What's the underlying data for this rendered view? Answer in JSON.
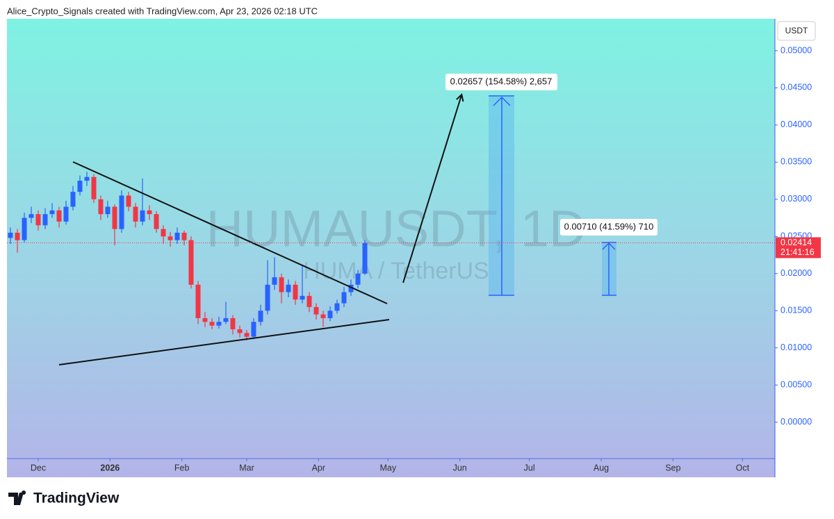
{
  "header": "Alice_Crypto_Signals created with TradingView.com, Apr 23, 2026 02:18 UTC",
  "brand": "TradingView",
  "chart_data": {
    "type": "candlestick",
    "title": "HUMAUSDT, 1D",
    "subtitle": "HUMA / TetherUS",
    "currency": "USDT",
    "up_color": "#2962ff",
    "down_color": "#f23645",
    "grid": false,
    "last_price": 0.02414,
    "countdown": "21:41:16",
    "annotations": [
      "0.02657 (154.58%) 2,657",
      "0.00710 (41.59%) 710"
    ],
    "xlim": [
      -13.5,
      318
    ],
    "xticks": [
      {
        "value": 0,
        "label": "Dec"
      },
      {
        "value": 31,
        "label": "2026"
      },
      {
        "value": 62,
        "label": "Feb"
      },
      {
        "value": 90,
        "label": "Mar"
      },
      {
        "value": 121,
        "label": "Apr"
      },
      {
        "value": 151,
        "label": "May"
      },
      {
        "value": 182,
        "label": "Jun"
      },
      {
        "value": 212,
        "label": "Jul"
      },
      {
        "value": 243,
        "label": "Aug"
      },
      {
        "value": 274,
        "label": "Sep"
      },
      {
        "value": 304,
        "label": "Oct"
      }
    ],
    "ylim": [
      -0.0049,
      0.0543
    ],
    "yticks": [
      {
        "value": 0.05,
        "label": "0.05000"
      },
      {
        "value": 0.045,
        "label": "0.04500"
      },
      {
        "value": 0.04,
        "label": "0.04000"
      },
      {
        "value": 0.035,
        "label": "0.03500"
      },
      {
        "value": 0.03,
        "label": "0.03000"
      },
      {
        "value": 0.025,
        "label": "0.02500"
      },
      {
        "value": 0.02,
        "label": "0.02000"
      },
      {
        "value": 0.015,
        "label": "0.01500"
      },
      {
        "value": 0.01,
        "label": "0.01000"
      },
      {
        "value": 0.005,
        "label": "0.00500"
      },
      {
        "value": 0,
        "label": "0.00000"
      }
    ],
    "x": [
      -12,
      -9,
      -6,
      -3,
      0,
      3,
      6,
      9,
      12,
      15,
      18,
      21,
      24,
      27,
      30,
      33,
      36,
      39,
      42,
      45,
      48,
      51,
      54,
      57,
      60,
      63,
      66,
      69,
      72,
      75,
      78,
      81,
      84,
      87,
      90,
      93,
      96,
      99,
      102,
      105,
      108,
      111,
      114,
      117,
      120,
      123,
      126,
      129,
      132,
      135,
      138,
      141
    ],
    "ohlc": [
      [
        0.0248,
        0.0262,
        0.024,
        0.0255
      ],
      [
        0.0255,
        0.026,
        0.0228,
        0.0245
      ],
      [
        0.0245,
        0.0282,
        0.0242,
        0.0275
      ],
      [
        0.0275,
        0.029,
        0.0268,
        0.028
      ],
      [
        0.028,
        0.0285,
        0.0258,
        0.0265
      ],
      [
        0.0265,
        0.0288,
        0.026,
        0.028
      ],
      [
        0.028,
        0.0295,
        0.0275,
        0.0285
      ],
      [
        0.0285,
        0.029,
        0.0262,
        0.027
      ],
      [
        0.027,
        0.0298,
        0.0266,
        0.029
      ],
      [
        0.029,
        0.0318,
        0.0285,
        0.031
      ],
      [
        0.031,
        0.0332,
        0.0305,
        0.0325
      ],
      [
        0.0325,
        0.0337,
        0.0318,
        0.033
      ],
      [
        0.033,
        0.0334,
        0.0295,
        0.03
      ],
      [
        0.03,
        0.0305,
        0.0272,
        0.028
      ],
      [
        0.028,
        0.0298,
        0.0275,
        0.029
      ],
      [
        0.029,
        0.0293,
        0.0238,
        0.026
      ],
      [
        0.026,
        0.0312,
        0.0255,
        0.0305
      ],
      [
        0.0305,
        0.031,
        0.0284,
        0.029
      ],
      [
        0.029,
        0.0295,
        0.0262,
        0.027
      ],
      [
        0.027,
        0.0328,
        0.0265,
        0.0285
      ],
      [
        0.0285,
        0.0292,
        0.0272,
        0.028
      ],
      [
        0.028,
        0.0284,
        0.0255,
        0.026
      ],
      [
        0.026,
        0.0265,
        0.024,
        0.025
      ],
      [
        0.025,
        0.0256,
        0.0236,
        0.0245
      ],
      [
        0.0245,
        0.0262,
        0.024,
        0.0255
      ],
      [
        0.0255,
        0.0258,
        0.0238,
        0.0245
      ],
      [
        0.0245,
        0.025,
        0.018,
        0.0185
      ],
      [
        0.0185,
        0.019,
        0.0132,
        0.014
      ],
      [
        0.014,
        0.0148,
        0.0128,
        0.0135
      ],
      [
        0.0135,
        0.014,
        0.0125,
        0.013
      ],
      [
        0.013,
        0.0142,
        0.0126,
        0.0135
      ],
      [
        0.0135,
        0.0162,
        0.0132,
        0.014
      ],
      [
        0.014,
        0.0144,
        0.0118,
        0.0125
      ],
      [
        0.0125,
        0.013,
        0.0114,
        0.012
      ],
      [
        0.012,
        0.0124,
        0.011,
        0.0115
      ],
      [
        0.0115,
        0.014,
        0.0112,
        0.0135
      ],
      [
        0.0135,
        0.0158,
        0.013,
        0.015
      ],
      [
        0.015,
        0.0218,
        0.0145,
        0.0185
      ],
      [
        0.0185,
        0.0222,
        0.0178,
        0.0195
      ],
      [
        0.0195,
        0.02,
        0.016,
        0.0175
      ],
      [
        0.0175,
        0.0192,
        0.0168,
        0.0185
      ],
      [
        0.0185,
        0.019,
        0.0158,
        0.0165
      ],
      [
        0.0165,
        0.0212,
        0.016,
        0.017
      ],
      [
        0.017,
        0.0175,
        0.0148,
        0.0155
      ],
      [
        0.0155,
        0.016,
        0.0138,
        0.0145
      ],
      [
        0.0145,
        0.015,
        0.0128,
        0.014
      ],
      [
        0.014,
        0.0156,
        0.0136,
        0.015
      ],
      [
        0.015,
        0.0165,
        0.0146,
        0.016
      ],
      [
        0.016,
        0.0182,
        0.0155,
        0.0175
      ],
      [
        0.0175,
        0.0192,
        0.017,
        0.0185
      ],
      [
        0.0185,
        0.0205,
        0.018,
        0.02
      ],
      [
        0.02,
        0.0245,
        0.0198,
        0.0241
      ]
    ]
  }
}
